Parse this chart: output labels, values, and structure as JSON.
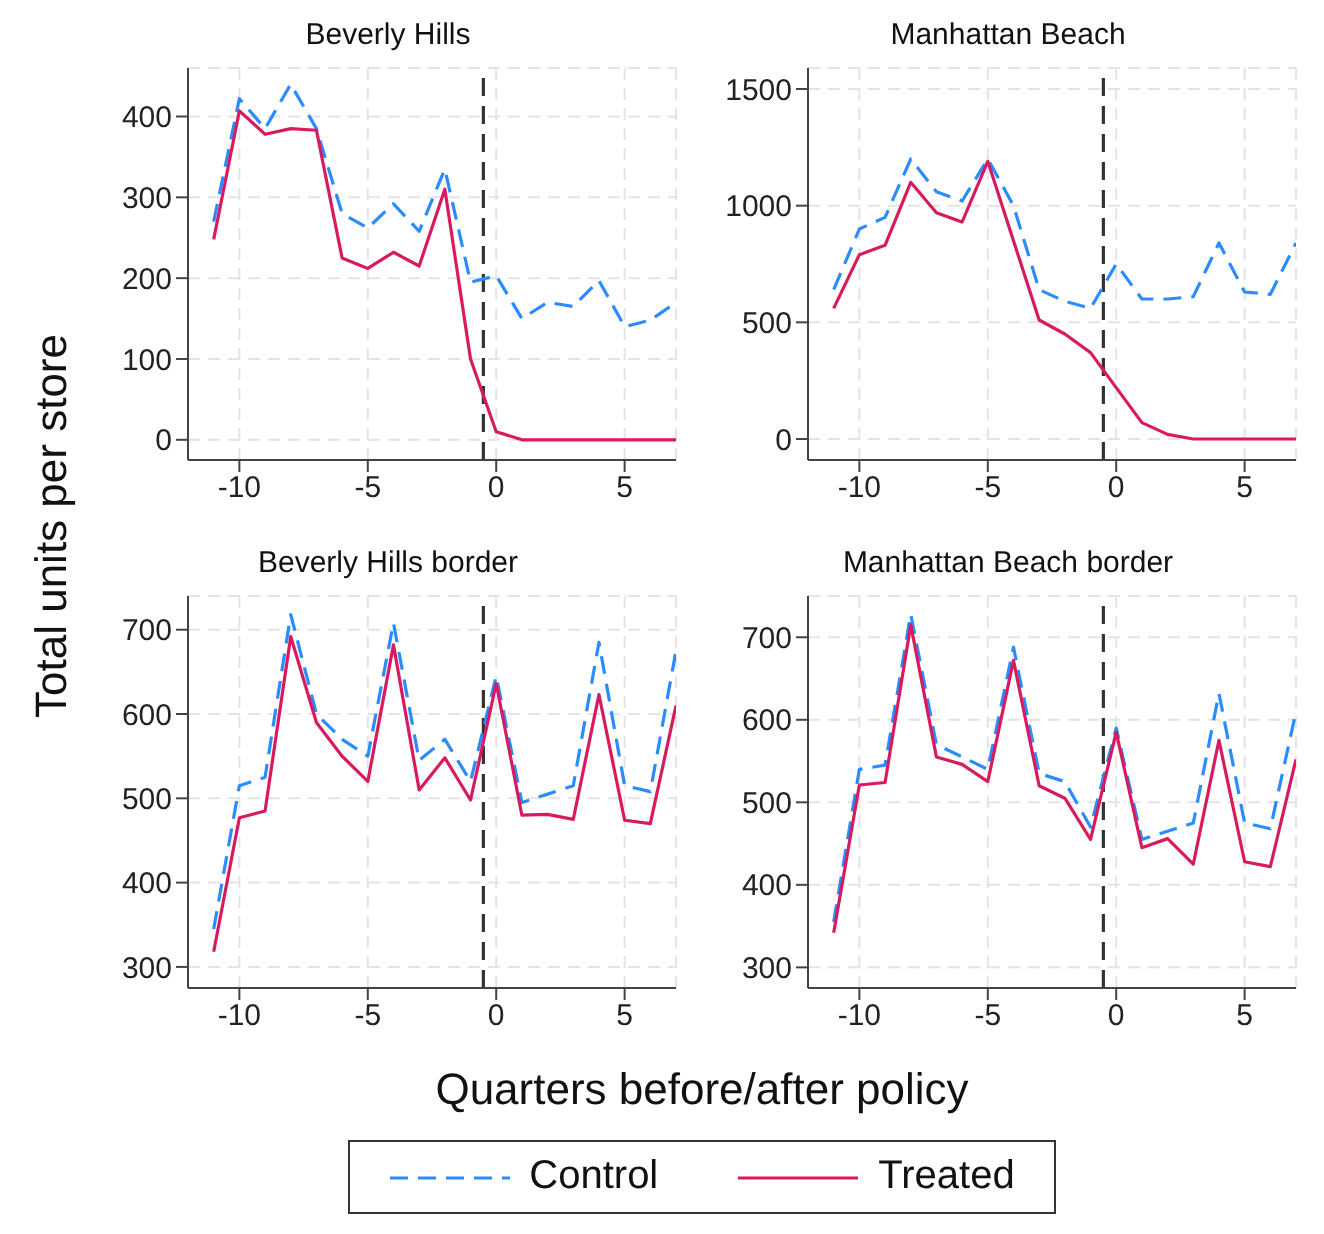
{
  "chart_data": [
    {
      "type": "line",
      "title": "Beverly Hills",
      "ylabel": "Total units per store",
      "legend": "bottom",
      "x": [
        -11,
        -10,
        -9,
        -8,
        -7,
        -6,
        -5,
        -4,
        -3,
        -2,
        -1,
        0,
        1,
        2,
        3,
        4,
        5,
        6,
        7
      ],
      "xlim": [
        -12,
        7
      ],
      "xticks": [
        -10,
        -5,
        0,
        5
      ],
      "ylim": [
        -25,
        460
      ],
      "yticks": [
        0,
        100,
        200,
        300,
        400
      ],
      "grid": true,
      "marker": "none",
      "ref_lines": [
        {
          "axis": "x",
          "value": -0.5,
          "color": "#333333",
          "line_style": "dashed"
        }
      ],
      "series": [
        {
          "name": "Control",
          "color": "#2b8cff",
          "line_style": "dashed",
          "values": [
            270,
            422,
            385,
            440,
            385,
            280,
            262,
            292,
            258,
            335,
            195,
            203,
            150,
            170,
            165,
            197,
            140,
            148,
            170
          ]
        },
        {
          "name": "Treated",
          "color": "#d81b60",
          "line_style": "solid",
          "values": [
            248,
            407,
            378,
            385,
            383,
            225,
            212,
            232,
            215,
            310,
            100,
            10,
            0,
            0,
            0,
            0,
            0,
            0,
            0
          ]
        }
      ]
    },
    {
      "type": "line",
      "title": "Manhattan Beach",
      "x": [
        -11,
        -10,
        -9,
        -8,
        -7,
        -6,
        -5,
        -4,
        -3,
        -2,
        -1,
        0,
        1,
        2,
        3,
        4,
        5,
        6,
        7
      ],
      "xlim": [
        -12,
        7
      ],
      "xticks": [
        -10,
        -5,
        0,
        5
      ],
      "ylim": [
        -90,
        1590
      ],
      "yticks": [
        0,
        500,
        1000,
        1500
      ],
      "grid": true,
      "marker": "none",
      "ref_lines": [
        {
          "axis": "x",
          "value": -0.5,
          "color": "#333333",
          "line_style": "dashed"
        }
      ],
      "series": [
        {
          "color": "#2b8cff",
          "line_style": "dashed",
          "values": [
            640,
            900,
            950,
            1200,
            1060,
            1020,
            1200,
            1000,
            640,
            590,
            560,
            750,
            600,
            600,
            610,
            840,
            630,
            620,
            840
          ]
        },
        {
          "color": "#d81b60",
          "line_style": "solid",
          "values": [
            560,
            790,
            830,
            1100,
            970,
            930,
            1190,
            850,
            510,
            450,
            370,
            220,
            70,
            20,
            0,
            0,
            0,
            0,
            0
          ]
        }
      ]
    },
    {
      "type": "line",
      "title": "Beverly Hills border",
      "xlabel": "Quarters before/after policy",
      "x": [
        -11,
        -10,
        -9,
        -8,
        -7,
        -6,
        -5,
        -4,
        -3,
        -2,
        -1,
        0,
        1,
        2,
        3,
        4,
        5,
        6,
        7
      ],
      "xlim": [
        -12,
        7
      ],
      "xticks": [
        -10,
        -5,
        0,
        5
      ],
      "ylim": [
        275,
        740
      ],
      "yticks": [
        300,
        400,
        500,
        600,
        700
      ],
      "grid": true,
      "marker": "none",
      "ref_lines": [
        {
          "axis": "x",
          "value": -0.5,
          "color": "#333333",
          "line_style": "dashed"
        }
      ],
      "series": [
        {
          "color": "#2b8cff",
          "line_style": "dashed",
          "values": [
            345,
            515,
            525,
            718,
            600,
            570,
            550,
            708,
            545,
            570,
            520,
            645,
            495,
            505,
            515,
            685,
            515,
            508,
            675
          ]
        },
        {
          "color": "#d81b60",
          "line_style": "solid",
          "values": [
            318,
            477,
            485,
            692,
            590,
            550,
            520,
            682,
            510,
            548,
            498,
            636,
            480,
            481,
            475,
            623,
            474,
            470,
            610
          ]
        }
      ]
    },
    {
      "type": "line",
      "title": "Manhattan Beach border",
      "x": [
        -11,
        -10,
        -9,
        -8,
        -7,
        -6,
        -5,
        -4,
        -3,
        -2,
        -1,
        0,
        1,
        2,
        3,
        4,
        5,
        6,
        7
      ],
      "xlim": [
        -12,
        7
      ],
      "xticks": [
        -10,
        -5,
        0,
        5
      ],
      "ylim": [
        275,
        750
      ],
      "yticks": [
        300,
        400,
        500,
        600,
        700
      ],
      "grid": true,
      "marker": "none",
      "ref_lines": [
        {
          "axis": "x",
          "value": -0.5,
          "color": "#333333",
          "line_style": "dashed"
        }
      ],
      "series": [
        {
          "color": "#2b8cff",
          "line_style": "dashed",
          "values": [
            355,
            540,
            545,
            728,
            570,
            555,
            540,
            688,
            535,
            525,
            470,
            590,
            455,
            465,
            475,
            632,
            475,
            468,
            610
          ]
        },
        {
          "color": "#d81b60",
          "line_style": "solid",
          "values": [
            342,
            521,
            524,
            715,
            555,
            546,
            525,
            672,
            520,
            505,
            455,
            585,
            445,
            456,
            425,
            575,
            428,
            422,
            552
          ]
        }
      ]
    }
  ]
}
